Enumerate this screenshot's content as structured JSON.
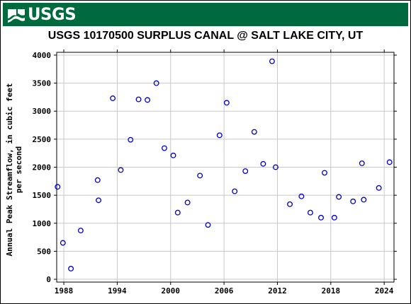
{
  "header": {
    "logo_text": "USGS",
    "logo_icon": "usgs-wave-icon",
    "banner_color": "#006a3f"
  },
  "chart_data": {
    "type": "scatter",
    "title": "USGS 10170500 SURPLUS CANAL @ SALT LAKE CITY, UT",
    "xlabel": "",
    "ylabel": "Annual Peak Streamflow, in cubic feet per second",
    "ylabel_lines": [
      "Annual Peak Streamflow, in cubic feet",
      "per second"
    ],
    "xlim": [
      1987.2,
      2025.1
    ],
    "ylim": [
      -50,
      4050
    ],
    "xticks": [
      1988,
      1994,
      2000,
      2006,
      2012,
      2018,
      2024
    ],
    "yticks": [
      0,
      500,
      1000,
      1500,
      2000,
      2500,
      3000,
      3500,
      4000
    ],
    "grid": true,
    "marker": "open-circle",
    "marker_color": "#0000cc",
    "series": [
      {
        "x": [
          1987.3,
          1987.9,
          1988.8,
          1989.9,
          1991.8,
          1991.9,
          1993.5,
          1994.4,
          1995.5,
          1996.4,
          1997.4,
          1998.4,
          1999.3,
          2000.3,
          2000.8,
          2001.9,
          2003.3,
          2004.2,
          2005.5,
          2006.3,
          2007.2,
          2008.4,
          2009.4,
          2010.4,
          2011.4,
          2011.8,
          2013.4,
          2014.7,
          2015.7,
          2016.9,
          2017.3,
          2018.4,
          2018.9,
          2020.5,
          2021.5,
          2021.7,
          2023.4,
          2024.6
        ],
        "y": [
          1650,
          650,
          190,
          870,
          1770,
          1410,
          3230,
          1950,
          2490,
          3210,
          3200,
          3500,
          2340,
          2210,
          1190,
          1370,
          1850,
          970,
          2570,
          3150,
          1570,
          1930,
          2630,
          2060,
          3890,
          2000,
          1340,
          1480,
          1190,
          1100,
          1900,
          1100,
          1470,
          1390,
          2070,
          1420,
          1630,
          2090
        ]
      }
    ]
  }
}
